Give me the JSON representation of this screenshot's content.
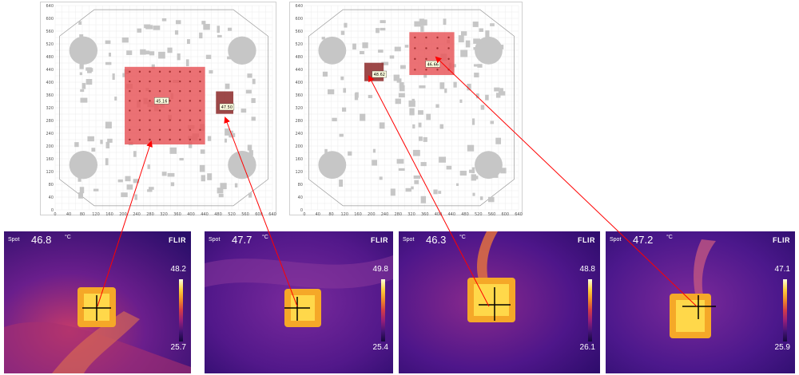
{
  "layout_plots": {
    "y_ticks": [
      "640",
      "600",
      "560",
      "520",
      "480",
      "440",
      "400",
      "360",
      "320",
      "280",
      "240",
      "200",
      "160",
      "120",
      "80",
      "40",
      "0"
    ],
    "x_ticks": [
      "0",
      "40",
      "80",
      "120",
      "160",
      "200",
      "240",
      "280",
      "320",
      "360",
      "400",
      "440",
      "480",
      "520",
      "560",
      "600",
      "640"
    ],
    "hotspots": {
      "left_large": "45.16",
      "left_small": "47.50",
      "right_small": "48.62",
      "right_large": "46.66"
    }
  },
  "thermal_images": [
    {
      "spot_label": "Spot",
      "spot_value": "46.8",
      "unit": "°C",
      "brand": "FLIR",
      "scale_max": "48.2",
      "scale_min": "25.7"
    },
    {
      "spot_label": "Spot",
      "spot_value": "47.7",
      "unit": "°C",
      "brand": "FLIR",
      "scale_max": "49.8",
      "scale_min": "25.4"
    },
    {
      "spot_label": "Spot",
      "spot_value": "46.3",
      "unit": "°C",
      "brand": "FLIR",
      "scale_max": "48.8",
      "scale_min": "26.1"
    },
    {
      "spot_label": "Spot",
      "spot_value": "47.2",
      "unit": "°C",
      "brand": "FLIR",
      "scale_max": "47.1",
      "scale_min": "25.9"
    }
  ],
  "colors": {
    "hotspot_red": "#e8585c",
    "hotspot_dark": "#8c2828",
    "pad_gray": "#c6c6c6",
    "arrow": "#ff0000"
  }
}
